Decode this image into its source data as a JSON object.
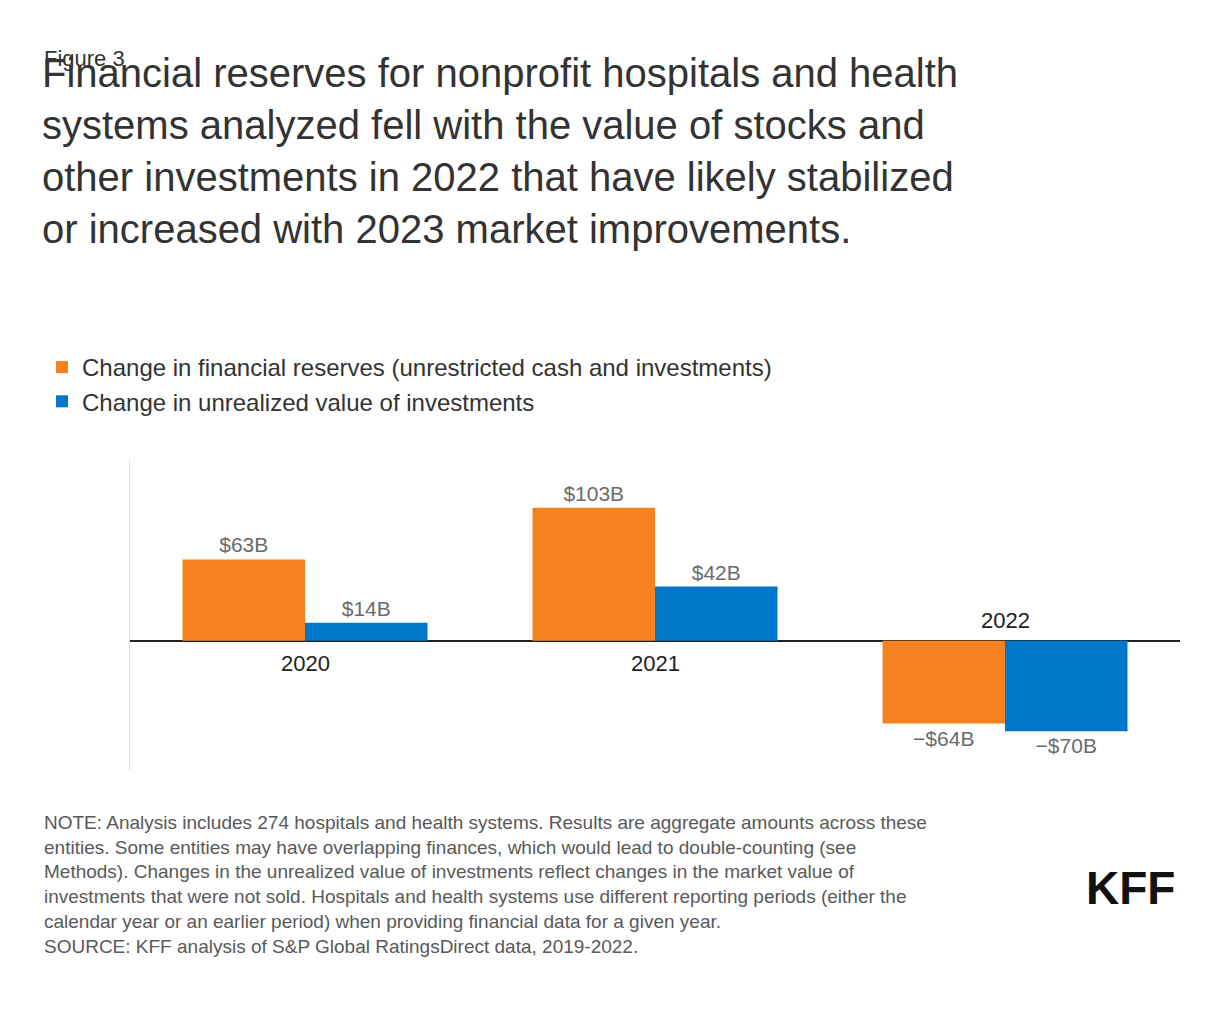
{
  "chart_data": {
    "type": "bar",
    "figure_label": "Figure 3",
    "title": [
      "Financial reserves for nonprofit hospitals and health",
      "systems analyzed fell with the value of stocks and",
      "other investments in 2022 that have likely stabilized",
      "or increased with 2023 market improvements."
    ],
    "categories": [
      "2020",
      "2021",
      "2022"
    ],
    "series": [
      {
        "name": "Change in financial reserves (unrestricted cash and investments)",
        "color": "#f5821f",
        "values": [
          63,
          103,
          -64
        ],
        "value_labels": [
          "$63B",
          "$103B",
          "−$64B"
        ]
      },
      {
        "name": "Change in unrealized value of investments",
        "color": "#0077c8",
        "values": [
          14,
          42,
          -70
        ],
        "value_labels": [
          "$14B",
          "$42B",
          "−$70B"
        ]
      }
    ],
    "ylim": [
      -100,
      140
    ],
    "grid": false,
    "legend": "top-left",
    "data_labels": true,
    "tick_labels": "x",
    "note": [
      "NOTE: Analysis includes 274 hospitals and health systems. Results are aggregate amounts across these",
      "entities. Some entities may have overlapping finances, which would lead to double-counting (see",
      "Methods). Changes in the unrealized value of investments reflect changes in the market value of",
      "investments that were not sold. Hospitals and health systems use different reporting periods (either the",
      "calendar year or an earlier period) when providing financial data for a given year."
    ],
    "source": "SOURCE: KFF analysis of S&P Global RatingsDirect data, 2019-2022.",
    "logo": "KFF"
  }
}
